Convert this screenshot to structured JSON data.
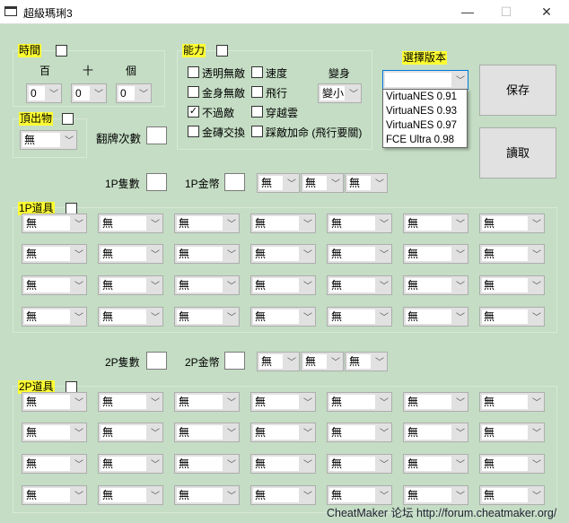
{
  "window": {
    "title": "超級瑪琍3",
    "min": "—",
    "max": "☐",
    "close": "✕"
  },
  "time": {
    "label": "時間",
    "hundreds": "百",
    "tens": "十",
    "ones": "個",
    "values": [
      "0",
      "0",
      "0"
    ]
  },
  "block": {
    "label": "頂出物",
    "value": "無"
  },
  "flip": {
    "label": "翻牌次數"
  },
  "ability": {
    "label": "能力",
    "items": [
      {
        "label": "透明無敵",
        "checked": false
      },
      {
        "label": "速度",
        "checked": false
      },
      {
        "label": "金身無敵",
        "checked": false
      },
      {
        "label": "飛行",
        "checked": false
      },
      {
        "label": "不過敵",
        "checked": true
      },
      {
        "label": "穿越雲",
        "checked": false
      },
      {
        "label": "金磚交換",
        "checked": false
      },
      {
        "label": "踩敵加命 (飛行要關)",
        "checked": false
      }
    ],
    "transform_label": "變身",
    "transform_value": "變小"
  },
  "version": {
    "label": "選擇版本",
    "value": "",
    "options": [
      "VirtuaNES 0.91",
      "VirtuaNES 0.93",
      "VirtuaNES 0.97",
      "FCE Ultra 0.98"
    ]
  },
  "buttons": {
    "save": "保存",
    "load": "讀取"
  },
  "p1": {
    "lives_label": "1P隻數",
    "coins_label": "1P金幣",
    "extra": [
      "無",
      "無",
      "無"
    ],
    "items_label": "1P道具",
    "items": [
      "無",
      "無",
      "無",
      "無",
      "無",
      "無",
      "無",
      "無",
      "無",
      "無",
      "無",
      "無",
      "無",
      "無",
      "無",
      "無",
      "無",
      "無",
      "無",
      "無",
      "無",
      "無",
      "無",
      "無",
      "無",
      "無",
      "無",
      "無"
    ]
  },
  "p2": {
    "lives_label": "2P隻數",
    "coins_label": "2P金幣",
    "extra": [
      "無",
      "無",
      "無"
    ],
    "items_label": "2P道具",
    "items": [
      "無",
      "無",
      "無",
      "無",
      "無",
      "無",
      "無",
      "無",
      "無",
      "無",
      "無",
      "無",
      "無",
      "無",
      "無",
      "無",
      "無",
      "無",
      "無",
      "無",
      "無",
      "無",
      "無",
      "無",
      "無",
      "無",
      "無",
      "無"
    ]
  },
  "footer": "CheatMaker 论坛 http://forum.cheatmaker.org/"
}
